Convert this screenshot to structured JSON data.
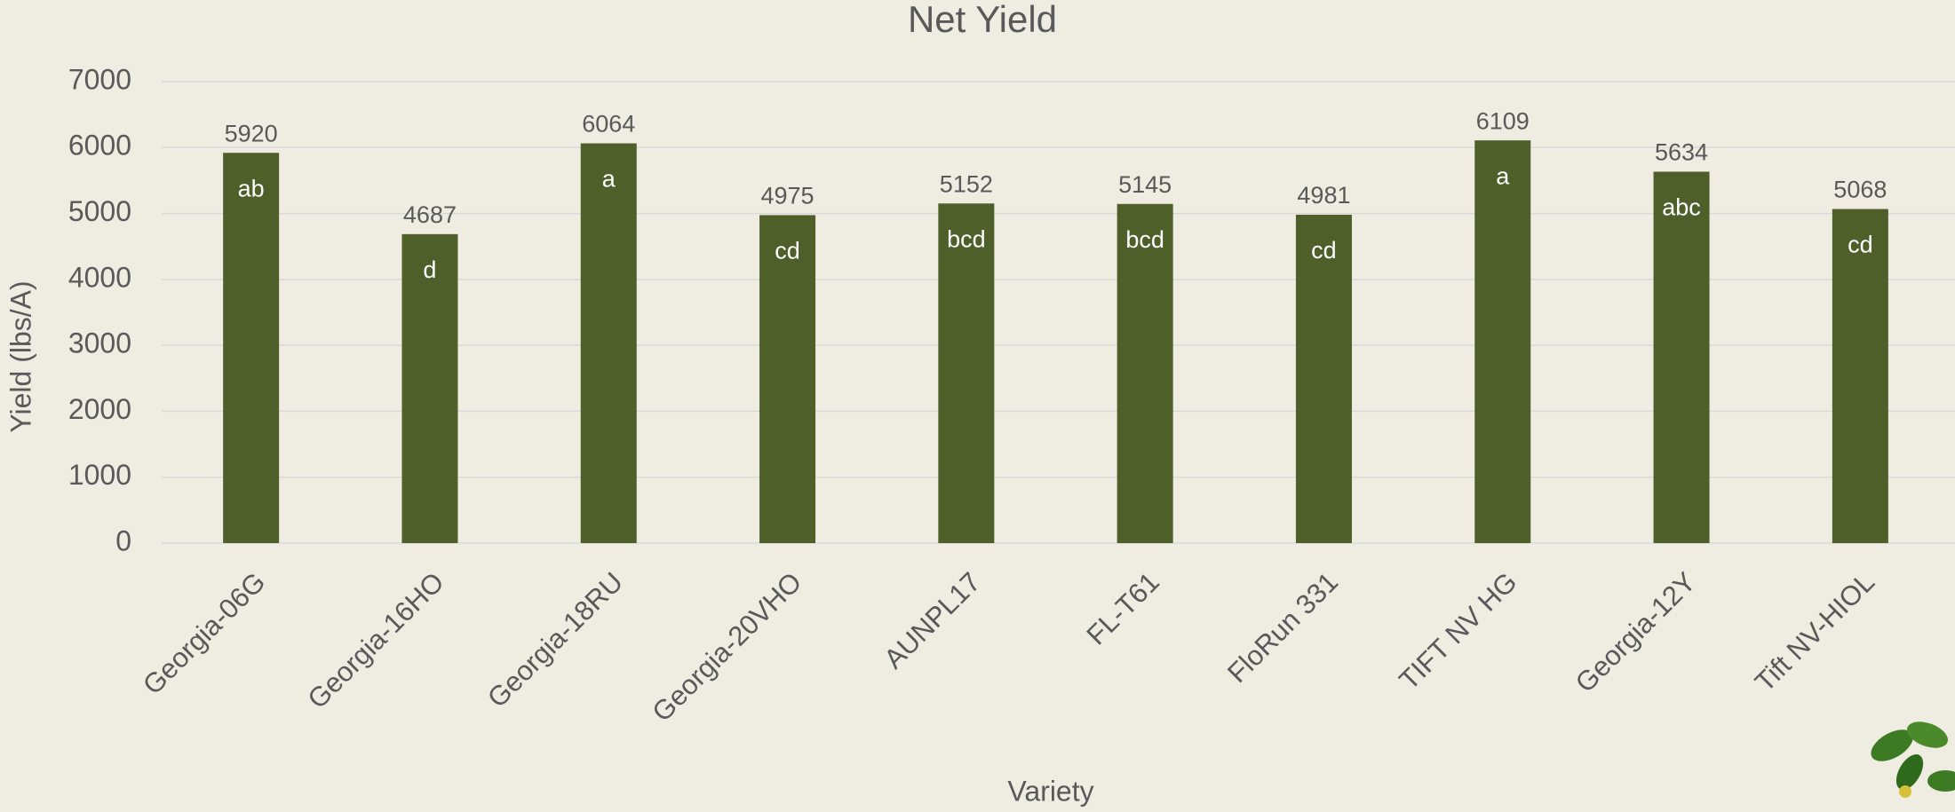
{
  "chart_data": {
    "type": "bar",
    "title": "Net Yield",
    "x_label": "Variety",
    "y_label": "Yield (lbs/A)",
    "categories": [
      "Georgia-06G",
      "Georgia-16HO",
      "Georgia-18RU",
      "Georgia-20VHO",
      "AUNPL17",
      "FL-T61",
      "FloRun 331",
      "TIFT NV HG",
      "Georgia-12Y",
      "Tift NV-HIOL"
    ],
    "values": [
      5920,
      4687,
      6064,
      4975,
      5152,
      5145,
      4981,
      6109,
      5634,
      5068
    ],
    "annotations": [
      "ab",
      "d",
      "a",
      "cd",
      "bcd",
      "bcd",
      "cd",
      "a",
      "abc",
      "cd"
    ],
    "color": "#4e5f2a",
    "ylim": [
      0,
      7000
    ],
    "yticks": [
      0,
      1000,
      2000,
      3000,
      4000,
      5000,
      6000,
      7000
    ],
    "grid": true
  }
}
